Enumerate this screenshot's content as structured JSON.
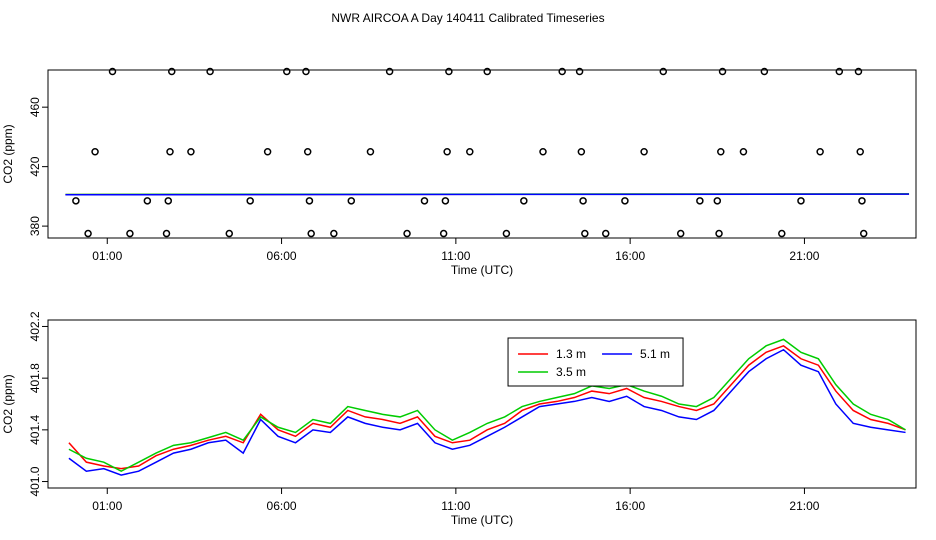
{
  "figure": {
    "title": "NWR AIRCOA A  Day 140411  Calibrated Timeseries"
  },
  "chart_data": [
    {
      "type": "scatter",
      "title": "",
      "xlabel": "Time (UTC)",
      "ylabel": "CO2 (ppm)",
      "xlim": [
        -0.7,
        24.2
      ],
      "ylim": [
        372,
        485
      ],
      "xticks": [
        {
          "value": 1,
          "label": "01:00"
        },
        {
          "value": 6,
          "label": "06:00"
        },
        {
          "value": 11,
          "label": "11:00"
        },
        {
          "value": 16,
          "label": "16:00"
        },
        {
          "value": 21,
          "label": "21:00"
        }
      ],
      "yticks": [
        {
          "value": 380,
          "label": "380"
        },
        {
          "value": 420,
          "label": "420"
        },
        {
          "value": 460,
          "label": "460"
        }
      ],
      "grid": false,
      "series": [
        {
          "marker": "open-circle",
          "color": "#000000",
          "points": [
            [
              0.45,
              375
            ],
            [
              0.1,
              397
            ],
            [
              0.65,
              430
            ],
            [
              1.15,
              484
            ],
            [
              1.65,
              375
            ],
            [
              2.15,
              397
            ],
            [
              2.7,
              375
            ],
            [
              2.75,
              397
            ],
            [
              2.8,
              430
            ],
            [
              2.85,
              484
            ],
            [
              3.4,
              430
            ],
            [
              3.95,
              484
            ],
            [
              4.5,
              375
            ],
            [
              5.1,
              397
            ],
            [
              5.6,
              430
            ],
            [
              6.15,
              484
            ],
            [
              6.7,
              484
            ],
            [
              6.75,
              430
            ],
            [
              6.8,
              397
            ],
            [
              6.85,
              375
            ],
            [
              7.5,
              375
            ],
            [
              8.0,
              397
            ],
            [
              8.55,
              430
            ],
            [
              9.1,
              484
            ],
            [
              9.6,
              375
            ],
            [
              10.1,
              397
            ],
            [
              10.8,
              484
            ],
            [
              10.75,
              430
            ],
            [
              10.7,
              397
            ],
            [
              10.65,
              375
            ],
            [
              11.4,
              430
            ],
            [
              11.9,
              484
            ],
            [
              12.45,
              375
            ],
            [
              12.95,
              397
            ],
            [
              13.5,
              430
            ],
            [
              14.05,
              484
            ],
            [
              14.55,
              484
            ],
            [
              14.6,
              430
            ],
            [
              14.65,
              397
            ],
            [
              14.7,
              375
            ],
            [
              15.3,
              375
            ],
            [
              15.85,
              397
            ],
            [
              16.4,
              430
            ],
            [
              16.95,
              484
            ],
            [
              17.45,
              375
            ],
            [
              18.0,
              397
            ],
            [
              18.5,
              397
            ],
            [
              18.55,
              375
            ],
            [
              18.6,
              430
            ],
            [
              18.65,
              484
            ],
            [
              19.25,
              430
            ],
            [
              19.85,
              484
            ],
            [
              20.35,
              375
            ],
            [
              20.9,
              397
            ],
            [
              21.45,
              430
            ],
            [
              22.0,
              484
            ],
            [
              22.55,
              484
            ],
            [
              22.6,
              430
            ],
            [
              22.65,
              397
            ],
            [
              22.7,
              375
            ]
          ]
        },
        {
          "name": "1.3 m",
          "color": "#ff0000",
          "style": "line",
          "x": [
            -0.2,
            24.0
          ],
          "y": [
            401.2,
            401.6
          ]
        },
        {
          "name": "3.5 m",
          "color": "#00cc00",
          "style": "line",
          "x": [
            -0.2,
            24.0
          ],
          "y": [
            401.3,
            401.7
          ]
        },
        {
          "name": "5.1 m",
          "color": "#0000ff",
          "style": "line",
          "x": [
            -0.2,
            24.0
          ],
          "y": [
            401.1,
            401.5
          ]
        }
      ]
    },
    {
      "type": "line",
      "title": "",
      "xlabel": "Time (UTC)",
      "ylabel": "CO2 (ppm)",
      "xlim": [
        -0.7,
        24.2
      ],
      "ylim": [
        400.95,
        402.25
      ],
      "xticks": [
        {
          "value": 1,
          "label": "01:00"
        },
        {
          "value": 6,
          "label": "06:00"
        },
        {
          "value": 11,
          "label": "11:00"
        },
        {
          "value": 16,
          "label": "16:00"
        },
        {
          "value": 21,
          "label": "21:00"
        }
      ],
      "yticks": [
        {
          "value": 401.0,
          "label": "401.0"
        },
        {
          "value": 401.4,
          "label": "401.4"
        },
        {
          "value": 401.8,
          "label": "401.8"
        },
        {
          "value": 402.2,
          "label": "402.2"
        }
      ],
      "grid": false,
      "legend": {
        "placement": "top-center-right",
        "entries": [
          "1.3 m",
          "3.5 m",
          "5.1 m"
        ]
      },
      "series": [
        {
          "name": "1.3 m",
          "color": "#ff0000",
          "x": [
            -0.1,
            0.4,
            0.9,
            1.4,
            1.9,
            2.4,
            2.9,
            3.4,
            3.9,
            4.4,
            4.9,
            5.4,
            5.9,
            6.4,
            6.9,
            7.4,
            7.9,
            8.4,
            8.9,
            9.4,
            9.9,
            10.4,
            10.9,
            11.4,
            11.9,
            12.4,
            12.9,
            13.4,
            13.9,
            14.4,
            14.9,
            15.4,
            15.9,
            16.4,
            16.9,
            17.4,
            17.9,
            18.4,
            18.9,
            19.4,
            19.9,
            20.4,
            20.9,
            21.4,
            21.9,
            22.4,
            22.9,
            23.4,
            23.9
          ],
          "y": [
            401.3,
            401.15,
            401.12,
            401.1,
            401.12,
            401.2,
            401.25,
            401.28,
            401.32,
            401.35,
            401.3,
            401.52,
            401.4,
            401.35,
            401.45,
            401.42,
            401.55,
            401.5,
            401.48,
            401.45,
            401.5,
            401.35,
            401.3,
            401.32,
            401.4,
            401.45,
            401.55,
            401.6,
            401.62,
            401.65,
            401.7,
            401.68,
            401.72,
            401.65,
            401.62,
            401.58,
            401.55,
            401.6,
            401.75,
            401.9,
            402.0,
            402.05,
            401.95,
            401.9,
            401.7,
            401.55,
            401.48,
            401.45,
            401.4
          ]
        },
        {
          "name": "3.5 m",
          "color": "#00cc00",
          "x": [
            -0.1,
            0.4,
            0.9,
            1.4,
            1.9,
            2.4,
            2.9,
            3.4,
            3.9,
            4.4,
            4.9,
            5.4,
            5.9,
            6.4,
            6.9,
            7.4,
            7.9,
            8.4,
            8.9,
            9.4,
            9.9,
            10.4,
            10.9,
            11.4,
            11.9,
            12.4,
            12.9,
            13.4,
            13.9,
            14.4,
            14.9,
            15.4,
            15.9,
            16.4,
            16.9,
            17.4,
            17.9,
            18.4,
            18.9,
            19.4,
            19.9,
            20.4,
            20.9,
            21.4,
            21.9,
            22.4,
            22.9,
            23.4,
            23.9
          ],
          "y": [
            401.25,
            401.18,
            401.15,
            401.08,
            401.15,
            401.22,
            401.28,
            401.3,
            401.34,
            401.38,
            401.32,
            401.5,
            401.42,
            401.38,
            401.48,
            401.45,
            401.58,
            401.55,
            401.52,
            401.5,
            401.55,
            401.4,
            401.32,
            401.38,
            401.45,
            401.5,
            401.58,
            401.62,
            401.65,
            401.68,
            401.74,
            401.72,
            401.75,
            401.7,
            401.66,
            401.6,
            401.58,
            401.65,
            401.8,
            401.95,
            402.05,
            402.1,
            402.0,
            401.95,
            401.75,
            401.6,
            401.52,
            401.48,
            401.4
          ]
        },
        {
          "name": "5.1 m",
          "color": "#0000ff",
          "x": [
            -0.1,
            0.4,
            0.9,
            1.4,
            1.9,
            2.4,
            2.9,
            3.4,
            3.9,
            4.4,
            4.9,
            5.4,
            5.9,
            6.4,
            6.9,
            7.4,
            7.9,
            8.4,
            8.9,
            9.4,
            9.9,
            10.4,
            10.9,
            11.4,
            11.9,
            12.4,
            12.9,
            13.4,
            13.9,
            14.4,
            14.9,
            15.4,
            15.9,
            16.4,
            16.9,
            17.4,
            17.9,
            18.4,
            18.9,
            19.4,
            19.9,
            20.4,
            20.9,
            21.4,
            21.9,
            22.4,
            22.9,
            23.4,
            23.9
          ],
          "y": [
            401.18,
            401.08,
            401.1,
            401.05,
            401.08,
            401.15,
            401.22,
            401.25,
            401.3,
            401.32,
            401.22,
            401.48,
            401.35,
            401.3,
            401.4,
            401.38,
            401.5,
            401.45,
            401.42,
            401.4,
            401.45,
            401.3,
            401.25,
            401.28,
            401.35,
            401.42,
            401.5,
            401.58,
            401.6,
            401.62,
            401.65,
            401.62,
            401.66,
            401.58,
            401.55,
            401.5,
            401.48,
            401.55,
            401.7,
            401.85,
            401.95,
            402.02,
            401.9,
            401.85,
            401.6,
            401.45,
            401.42,
            401.4,
            401.38
          ]
        }
      ]
    }
  ]
}
